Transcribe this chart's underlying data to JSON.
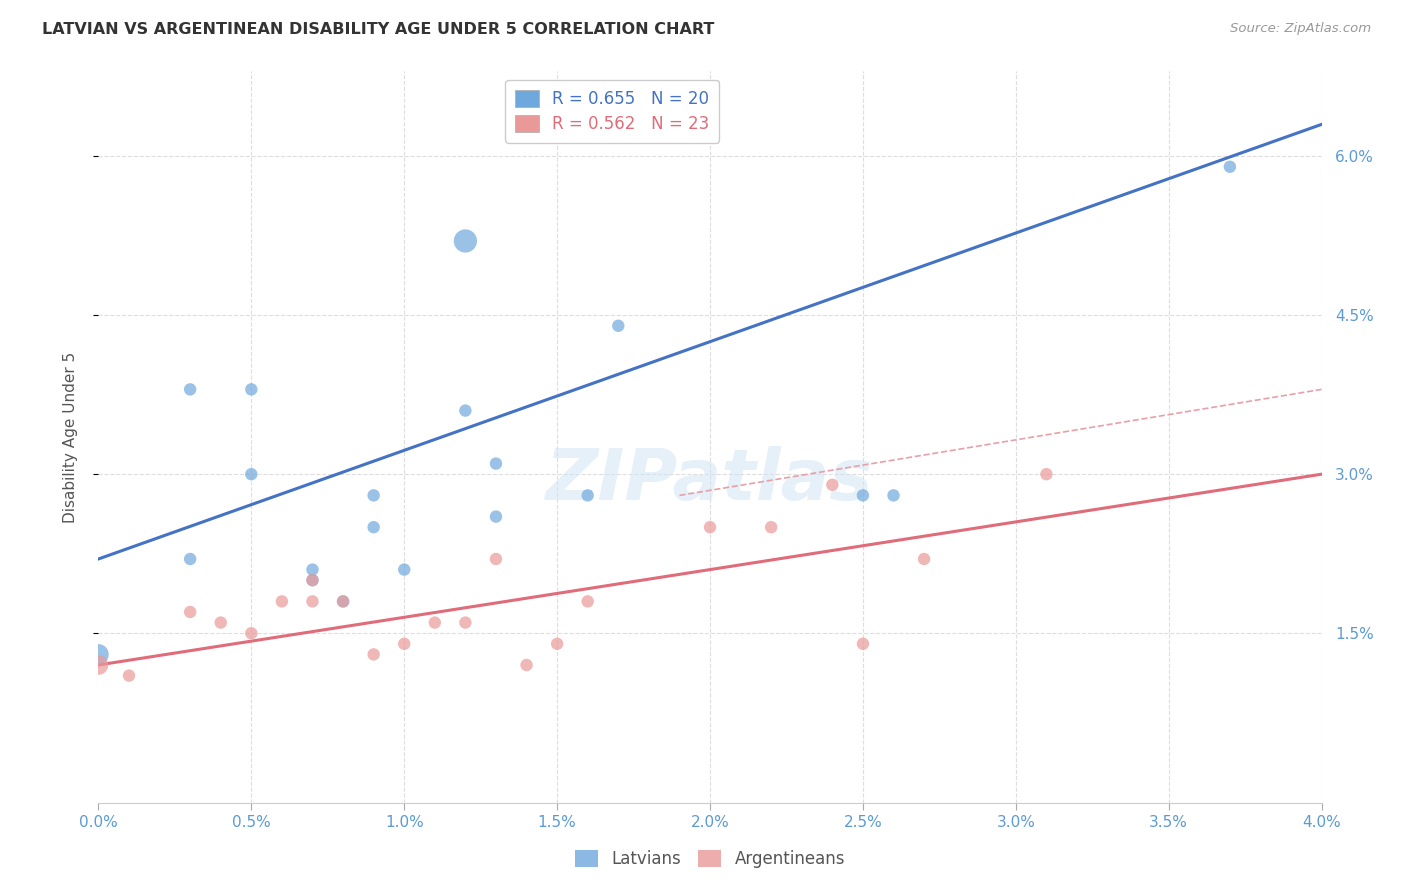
{
  "title": "LATVIAN VS ARGENTINEAN DISABILITY AGE UNDER 5 CORRELATION CHART",
  "source": "Source: ZipAtlas.com",
  "ylabel": "Disability Age Under 5",
  "xlim": [
    0.0,
    0.04
  ],
  "ylim": [
    -0.001,
    0.068
  ],
  "x_ticks": [
    0.0,
    0.005,
    0.01,
    0.015,
    0.02,
    0.025,
    0.03,
    0.035,
    0.04
  ],
  "x_tick_labels": [
    "0.0%",
    "0.5%",
    "1.0%",
    "1.5%",
    "2.0%",
    "2.5%",
    "3.0%",
    "3.5%",
    "4.0%"
  ],
  "y_ticks": [
    0.015,
    0.03,
    0.045,
    0.06
  ],
  "y_tick_labels": [
    "1.5%",
    "3.0%",
    "4.5%",
    "6.0%"
  ],
  "legend_entries": [
    {
      "r": "R = 0.655",
      "n": "N = 20",
      "color": "#6fa8dc"
    },
    {
      "r": "R = 0.562",
      "n": "N = 23",
      "color": "#ea9999"
    }
  ],
  "blue_color": "#6fa8dc",
  "pink_color": "#ea9999",
  "blue_line_color": "#4472c4",
  "pink_line_color": "#e06c7a",
  "dashed_line_color": "#e8a0a8",
  "grid_color": "#dddddd",
  "title_color": "#333333",
  "source_color": "#999999",
  "axis_tick_color": "#5b9bd5",
  "latvian_points": [
    [
      0.0,
      0.013,
      220
    ],
    [
      0.003,
      0.022,
      80
    ],
    [
      0.003,
      0.038,
      80
    ],
    [
      0.005,
      0.038,
      80
    ],
    [
      0.005,
      0.03,
      80
    ],
    [
      0.007,
      0.02,
      80
    ],
    [
      0.007,
      0.021,
      80
    ],
    [
      0.008,
      0.018,
      80
    ],
    [
      0.009,
      0.025,
      80
    ],
    [
      0.009,
      0.028,
      80
    ],
    [
      0.01,
      0.021,
      80
    ],
    [
      0.012,
      0.036,
      80
    ],
    [
      0.012,
      0.052,
      280
    ],
    [
      0.013,
      0.031,
      80
    ],
    [
      0.013,
      0.026,
      80
    ],
    [
      0.016,
      0.028,
      80
    ],
    [
      0.017,
      0.044,
      80
    ],
    [
      0.025,
      0.028,
      80
    ],
    [
      0.026,
      0.028,
      80
    ],
    [
      0.037,
      0.059,
      80
    ]
  ],
  "argentinean_points": [
    [
      0.0,
      0.012,
      200
    ],
    [
      0.001,
      0.011,
      80
    ],
    [
      0.003,
      0.017,
      80
    ],
    [
      0.004,
      0.016,
      80
    ],
    [
      0.005,
      0.015,
      80
    ],
    [
      0.006,
      0.018,
      80
    ],
    [
      0.007,
      0.018,
      80
    ],
    [
      0.007,
      0.02,
      80
    ],
    [
      0.008,
      0.018,
      80
    ],
    [
      0.009,
      0.013,
      80
    ],
    [
      0.01,
      0.014,
      80
    ],
    [
      0.011,
      0.016,
      80
    ],
    [
      0.012,
      0.016,
      80
    ],
    [
      0.013,
      0.022,
      80
    ],
    [
      0.014,
      0.012,
      80
    ],
    [
      0.015,
      0.014,
      80
    ],
    [
      0.016,
      0.018,
      80
    ],
    [
      0.02,
      0.025,
      80
    ],
    [
      0.022,
      0.025,
      80
    ],
    [
      0.024,
      0.029,
      80
    ],
    [
      0.025,
      0.014,
      80
    ],
    [
      0.027,
      0.022,
      80
    ],
    [
      0.031,
      0.03,
      80
    ]
  ],
  "blue_line": [
    [
      0.0,
      0.022
    ],
    [
      0.04,
      0.063
    ]
  ],
  "pink_line": [
    [
      0.0,
      0.012
    ],
    [
      0.04,
      0.03
    ]
  ],
  "dashed_line": [
    [
      0.019,
      0.028
    ],
    [
      0.04,
      0.038
    ]
  ],
  "watermark": "ZIPatlas"
}
